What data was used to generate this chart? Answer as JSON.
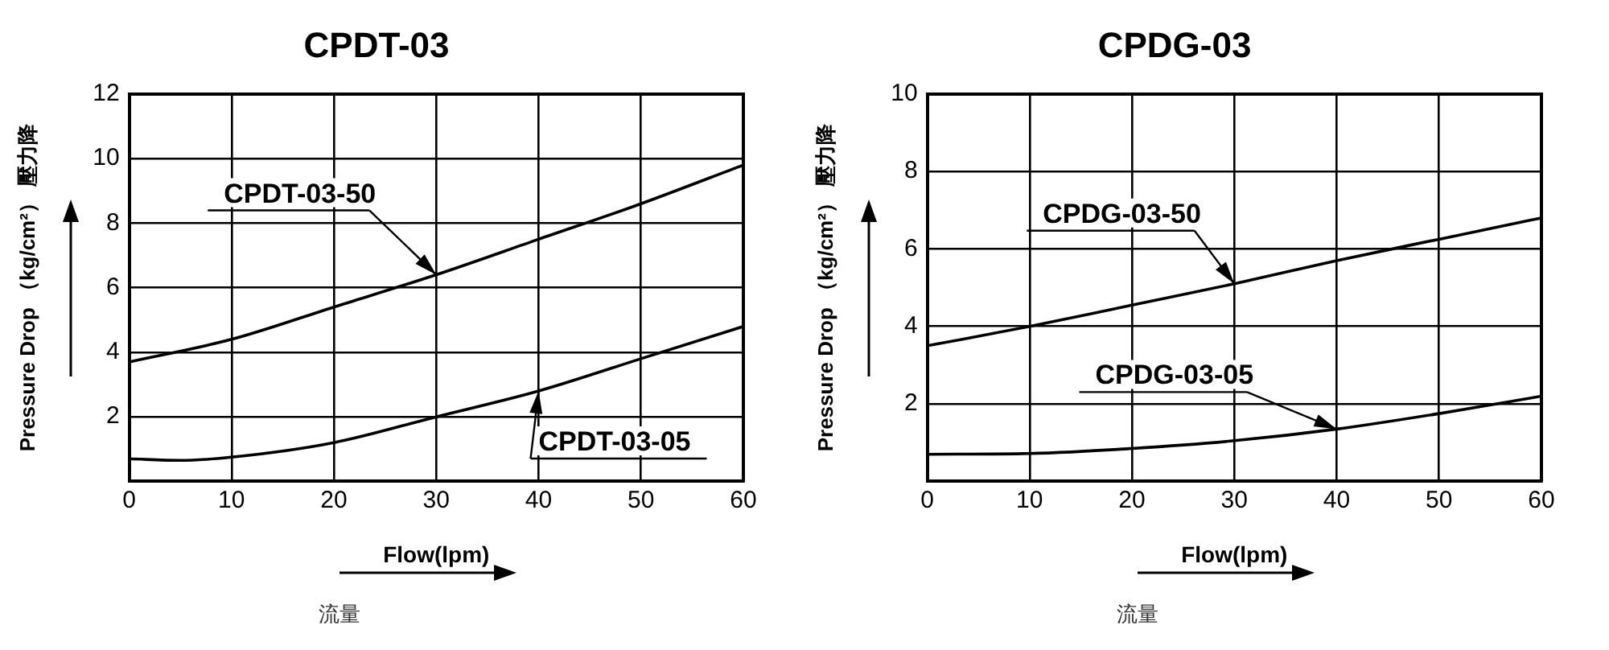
{
  "chart_data": [
    {
      "type": "line",
      "title": "CPDT-03",
      "xlabel": "Flow(lpm)",
      "ylabel": "Pressure Drop （kg/cm²） 壓力降",
      "annotations": [
        "流量"
      ],
      "xlim": [
        0,
        60
      ],
      "xticks": [
        0,
        10,
        20,
        30,
        40,
        50,
        60
      ],
      "ylim": [
        0,
        12
      ],
      "yticks": [
        2,
        4,
        6,
        8,
        10,
        12
      ],
      "grid": true,
      "marker": "none",
      "line_style": "solid",
      "series": [
        {
          "name": "CPDT-03-50",
          "color": "#000000",
          "x": [
            0,
            10,
            20,
            30,
            40,
            50,
            60
          ],
          "values": [
            3.7,
            4.4,
            5.4,
            6.4,
            7.5,
            8.6,
            9.8
          ]
        },
        {
          "name": "CPDT-03-05",
          "color": "#000000",
          "x": [
            0,
            5,
            10,
            20,
            30,
            40,
            50,
            60
          ],
          "values": [
            0.7,
            0.65,
            0.75,
            1.2,
            2.0,
            2.8,
            3.8,
            4.8
          ]
        }
      ]
    },
    {
      "type": "line",
      "title": "CPDG-03",
      "xlabel": "Flow(lpm)",
      "ylabel": "Pressure Drop （kg/cm²） 壓力降",
      "annotations": [
        "流量"
      ],
      "xlim": [
        0,
        60
      ],
      "xticks": [
        0,
        10,
        20,
        30,
        40,
        50,
        60
      ],
      "ylim": [
        0,
        10
      ],
      "yticks": [
        2,
        4,
        6,
        8,
        10
      ],
      "grid": true,
      "marker": "none",
      "line_style": "solid",
      "series": [
        {
          "name": "CPDG-03-50",
          "color": "#000000",
          "x": [
            0,
            10,
            20,
            30,
            40,
            50,
            60
          ],
          "values": [
            3.5,
            4.0,
            4.55,
            5.1,
            5.7,
            6.25,
            6.8
          ]
        },
        {
          "name": "CPDG-03-05",
          "color": "#000000",
          "x": [
            0,
            10,
            20,
            30,
            40,
            50,
            60
          ],
          "values": [
            0.7,
            0.72,
            0.85,
            1.05,
            1.35,
            1.75,
            2.2
          ]
        }
      ]
    }
  ]
}
